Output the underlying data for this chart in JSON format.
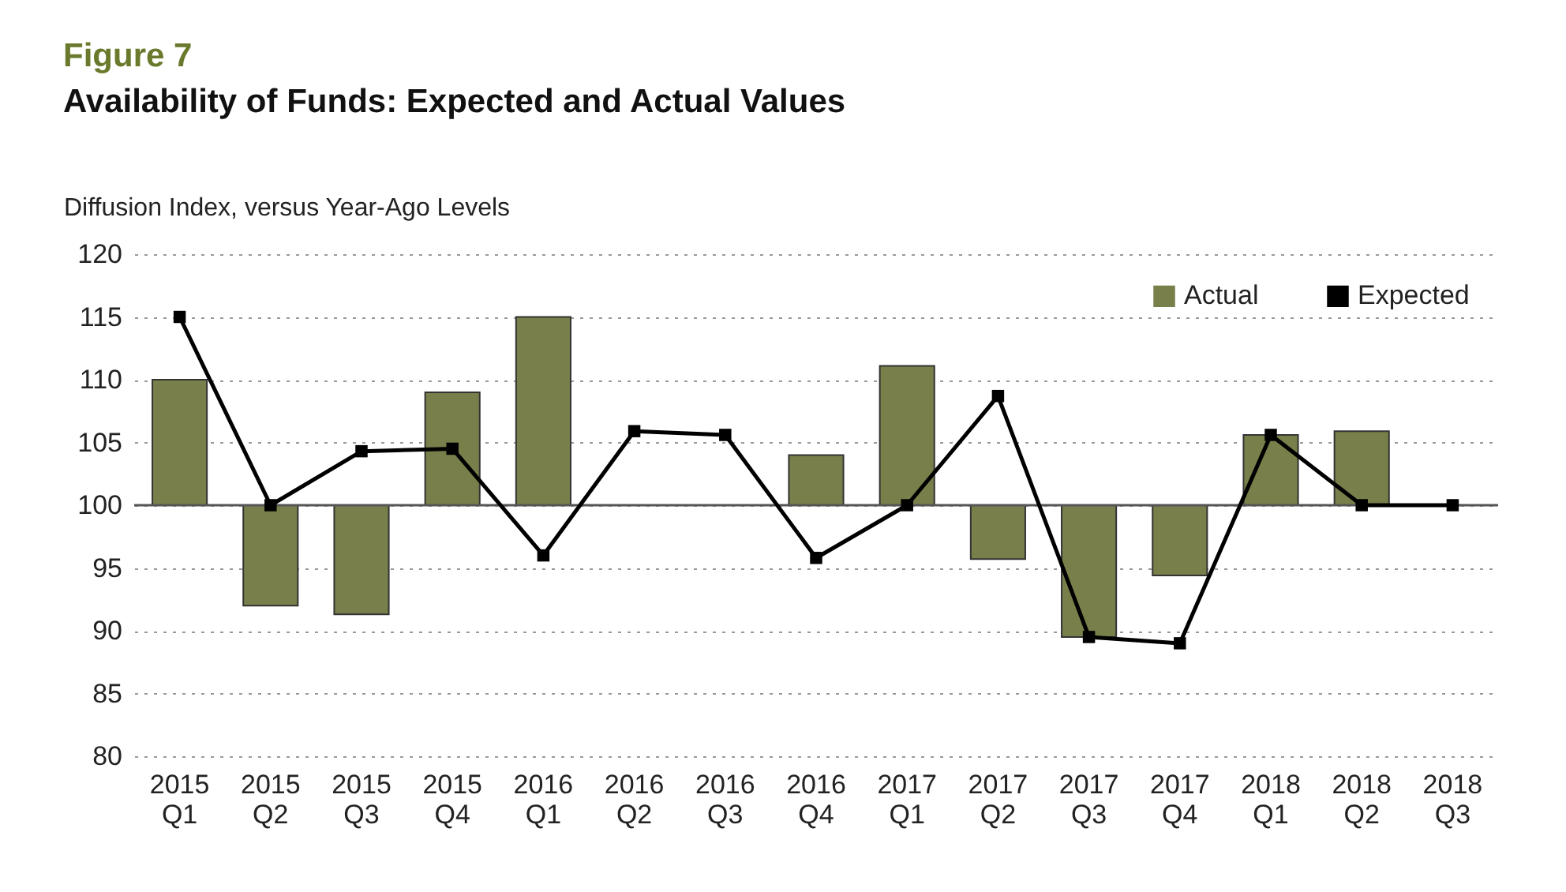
{
  "chart_data": {
    "type": "bar",
    "title": "Figure 7",
    "subtitle": "Availability of Funds: Expected and Actual Values",
    "ylabel": "Diffusion Index, versus Year-Ago Levels",
    "categories": [
      "2015 Q1",
      "2015 Q2",
      "2015 Q3",
      "2015 Q4",
      "2016 Q1",
      "2016 Q2",
      "2016 Q3",
      "2016 Q4",
      "2017 Q1",
      "2017 Q2",
      "2017 Q3",
      "2017 Q4",
      "2018 Q1",
      "2018 Q2",
      "2018 Q3"
    ],
    "series": [
      {
        "name": "Actual",
        "color": "#797f4a",
        "base": [
          100,
          100,
          100,
          100,
          100,
          null,
          null,
          100,
          100,
          100,
          100,
          100,
          100,
          100,
          null
        ],
        "values": [
          10,
          -8,
          -8.7,
          9,
          15,
          null,
          null,
          4,
          11.1,
          -4.3,
          -10.5,
          -5.6,
          5.6,
          5.9,
          null
        ]
      },
      {
        "name": "Expected",
        "type": "line",
        "color": "#000000",
        "marker": "square",
        "line_style": "solid",
        "values": [
          115,
          100,
          104.3,
          104.5,
          96,
          105.9,
          105.6,
          95.8,
          100,
          108.7,
          89.5,
          89,
          105.6,
          100,
          100
        ]
      }
    ],
    "ylim": [
      80,
      120
    ],
    "yticks": [
      80,
      85,
      90,
      95,
      100,
      105,
      110,
      115,
      120
    ],
    "grid": "y",
    "legend": "top right",
    "ref_lines": [
      {
        "axis": "y",
        "value": 100
      }
    ]
  }
}
